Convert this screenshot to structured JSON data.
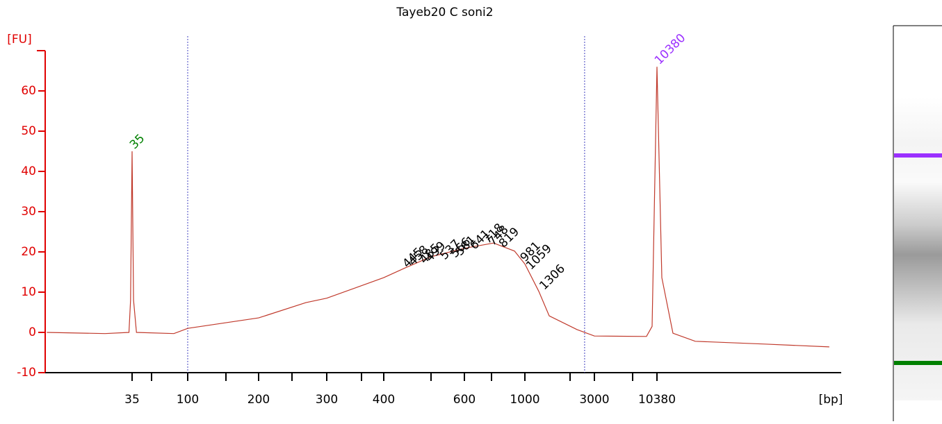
{
  "chart_data": {
    "type": "line",
    "title": "Tayeb20 C soni2",
    "y_label": "[FU]",
    "x_label": "[bp]",
    "ylim": [
      -10,
      70
    ],
    "yticks": [
      -10,
      0,
      10,
      20,
      30,
      40,
      50,
      60
    ],
    "xticks": [
      35,
      100,
      200,
      300,
      400,
      600,
      1000,
      3000,
      10380
    ],
    "axis_color": "#e00000",
    "series": [
      {
        "name": "Tayeb20 C soni2",
        "color": "#c0392b",
        "x": [
          7,
          21,
          33,
          34,
          35,
          36,
          38,
          77,
          100,
          200,
          265,
          300,
          400,
          445,
          507,
          600,
          768,
          916,
          1000,
          1246,
          1469,
          2280,
          3000,
          8430,
          9430,
          10380,
          11430,
          14250,
          22180,
          87930,
          317000
        ],
        "values": [
          0,
          -0.3,
          0,
          8,
          45,
          8,
          0,
          -0.3,
          1,
          3.6,
          7.4,
          8.5,
          13.6,
          16,
          18.8,
          20.9,
          22.2,
          20.2,
          17,
          10.2,
          4.1,
          0.7,
          -0.9,
          -1,
          1.5,
          66,
          13.6,
          -0.2,
          -2.2,
          -2.9,
          -3.6
        ]
      }
    ],
    "peaks": [
      {
        "x": 35,
        "y": 45,
        "color": "#008000"
      },
      {
        "x": 10380,
        "y": 66,
        "color": "#9b30ff"
      },
      {
        "x": 445,
        "y": 15.5,
        "color": "#000000"
      },
      {
        "x": 458,
        "y": 16,
        "color": "#000000"
      },
      {
        "x": 485,
        "y": 16.5,
        "color": "#000000"
      },
      {
        "x": 499,
        "y": 17,
        "color": "#000000"
      },
      {
        "x": 537,
        "y": 17.5,
        "color": "#000000"
      },
      {
        "x": 566,
        "y": 18,
        "color": "#000000"
      },
      {
        "x": 581,
        "y": 18.5,
        "color": "#000000"
      },
      {
        "x": 641,
        "y": 20,
        "color": "#000000"
      },
      {
        "x": 718,
        "y": 21.5,
        "color": "#000000"
      },
      {
        "x": 748,
        "y": 21,
        "color": "#000000"
      },
      {
        "x": 819,
        "y": 20.5,
        "color": "#000000"
      },
      {
        "x": 981,
        "y": 17,
        "color": "#000000"
      },
      {
        "x": 1059,
        "y": 15,
        "color": "#000000"
      },
      {
        "x": 1306,
        "y": 10,
        "color": "#000000"
      }
    ],
    "region_lines": [
      100,
      2570
    ],
    "region_color": "#4040c0"
  }
}
